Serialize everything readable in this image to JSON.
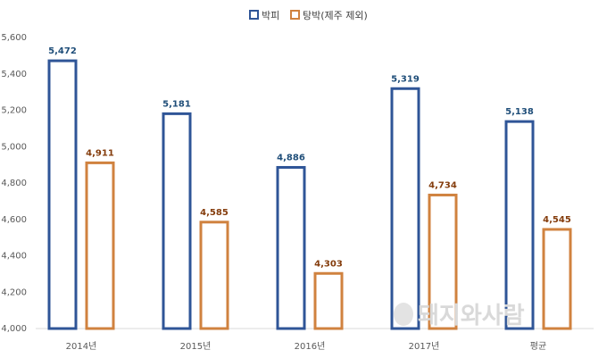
{
  "chart_data": {
    "type": "bar",
    "categories": [
      "2014년",
      "2015년",
      "2016년",
      "2017년",
      "평균"
    ],
    "series": [
      {
        "name": "박피",
        "values": [
          5472,
          5181,
          4886,
          5319,
          5138
        ],
        "color": "#2f5597",
        "label_color": "#1f4e79",
        "value_labels": [
          "5,472",
          "5,181",
          "4,886",
          "5,319",
          "5,138"
        ]
      },
      {
        "name": "탕박(제주 제외)",
        "values": [
          4911,
          4585,
          4303,
          4734,
          4545
        ],
        "color": "#d0823f",
        "label_color": "#843c0c",
        "value_labels": [
          "4,911",
          "4,585",
          "4,303",
          "4,734",
          "4,545"
        ]
      }
    ],
    "title": "",
    "xlabel": "",
    "ylabel": "",
    "ylim": [
      4000,
      5600
    ],
    "yticks": [
      4000,
      4200,
      4400,
      4600,
      4800,
      5000,
      5200,
      5400,
      5600
    ],
    "ytick_labels": [
      "4,000",
      "4,200",
      "4,400",
      "4,600",
      "4,800",
      "5,000",
      "5,200",
      "5,400",
      "5,600"
    ],
    "grid": false,
    "legend_position": "top-center"
  },
  "watermark": {
    "text": "돼지와사람"
  }
}
